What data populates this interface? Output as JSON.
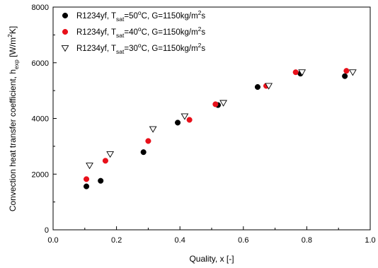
{
  "chart_data": {
    "type": "scatter",
    "xlabel": "Quality, x [-]",
    "ylabel": {
      "main": "Convection heat transfer coefficient, h",
      "subscript": "exp",
      "unit_open": " [W/m",
      "unit_sup": "2",
      "unit_close": "K]"
    },
    "xlim": [
      0.0,
      1.0
    ],
    "ylim": [
      0,
      8000
    ],
    "xticks": [
      "0.0",
      "0.2",
      "0.4",
      "0.6",
      "0.8",
      "1.0"
    ],
    "yticks": [
      "0",
      "2000",
      "4000",
      "6000",
      "8000"
    ],
    "grid": false,
    "legend_position": "top-left",
    "series": [
      {
        "name": "R1234yf, Tsat=50°C, G=1150kg/m2s",
        "legend": {
          "a": "R1234yf, T",
          "sub": "sat",
          "b": "=50",
          "sup1": "o",
          "c": "C, G=1150kg/m",
          "sup2": "2",
          "d": "s"
        },
        "marker": "circle-filled",
        "color": "#000000",
        "points": [
          {
            "x": 0.105,
            "y": 1560
          },
          {
            "x": 0.15,
            "y": 1760
          },
          {
            "x": 0.285,
            "y": 2790
          },
          {
            "x": 0.393,
            "y": 3850
          },
          {
            "x": 0.52,
            "y": 4480
          },
          {
            "x": 0.645,
            "y": 5130
          },
          {
            "x": 0.78,
            "y": 5610
          },
          {
            "x": 0.92,
            "y": 5520
          }
        ]
      },
      {
        "name": "R1234yf, Tsat=40°C, G=1150kg/m2s",
        "legend": {
          "a": "R1234yf, T",
          "sub": "sat",
          "b": "=40",
          "sup1": "o",
          "c": "C, G=1150kg/m",
          "sup2": "2",
          "d": "s"
        },
        "marker": "circle-filled",
        "color": "#e8101a",
        "points": [
          {
            "x": 0.105,
            "y": 1820
          },
          {
            "x": 0.165,
            "y": 2480
          },
          {
            "x": 0.3,
            "y": 3190
          },
          {
            "x": 0.43,
            "y": 3950
          },
          {
            "x": 0.512,
            "y": 4510
          },
          {
            "x": 0.672,
            "y": 5170
          },
          {
            "x": 0.765,
            "y": 5660
          },
          {
            "x": 0.925,
            "y": 5710
          }
        ]
      },
      {
        "name": "R1234yf, Tsat=30°C, G=1150kg/m2s",
        "legend": {
          "a": "R1234yf, T",
          "sub": "sat",
          "b": "=30",
          "sup1": "o",
          "c": "C, G=1150kg/m",
          "sup2": "2",
          "d": "s"
        },
        "marker": "triangle-down-open",
        "color": "#000000",
        "points": [
          {
            "x": 0.115,
            "y": 2310
          },
          {
            "x": 0.18,
            "y": 2720
          },
          {
            "x": 0.315,
            "y": 3620
          },
          {
            "x": 0.415,
            "y": 4080
          },
          {
            "x": 0.537,
            "y": 4560
          },
          {
            "x": 0.68,
            "y": 5170
          },
          {
            "x": 0.785,
            "y": 5660
          },
          {
            "x": 0.945,
            "y": 5660
          }
        ]
      }
    ]
  }
}
